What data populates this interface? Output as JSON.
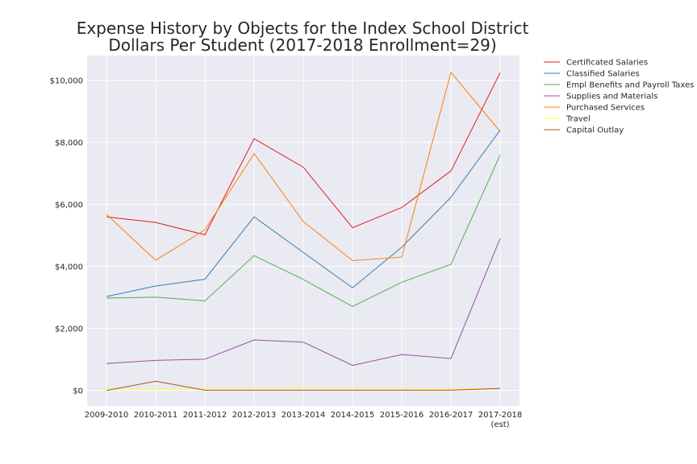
{
  "chart_data": {
    "type": "line",
    "title": "Expense History by Objects for the Index School District",
    "subtitle": "Dollars Per Student (2017-2018 Enrollment=29)",
    "xlabel": "",
    "ylabel": "",
    "categories": [
      "2009-2010",
      "2010-2011",
      "2011-2012",
      "2012-2013",
      "2013-2014",
      "2014-2015",
      "2015-2016",
      "2016-2017",
      "2017-2018\n(est)"
    ],
    "ylim": [
      -500,
      10800
    ],
    "yticks": [
      0,
      2000,
      4000,
      6000,
      8000,
      10000
    ],
    "ytick_labels": [
      "$0",
      "$2,000",
      "$4,000",
      "$6,000",
      "$8,000",
      "$10,000"
    ],
    "grid": true,
    "legend_placement": "outside-top-right",
    "series": [
      {
        "name": "Certificated Salaries",
        "color": "#e41a1c",
        "values": [
          5600,
          5420,
          5020,
          8120,
          7200,
          5250,
          5900,
          7080,
          10250
        ]
      },
      {
        "name": "Classified Salaries",
        "color": "#377eb8",
        "values": [
          3030,
          3370,
          3590,
          5600,
          4450,
          3310,
          4620,
          6230,
          8400
        ]
      },
      {
        "name": "Empl Benefits and Payroll Taxes",
        "color": "#4daf4a",
        "values": [
          2980,
          3010,
          2890,
          4350,
          3580,
          2710,
          3490,
          4070,
          7600
        ]
      },
      {
        "name": "Supplies and Materials",
        "color": "#984ea3",
        "values": [
          870,
          970,
          1010,
          1630,
          1560,
          810,
          1160,
          1030,
          4900
        ]
      },
      {
        "name": "Purchased Services",
        "color": "#ff7f00",
        "values": [
          5680,
          4200,
          5180,
          7640,
          5450,
          4190,
          4300,
          10260,
          8350
        ]
      },
      {
        "name": "Travel",
        "color": "#ffff33",
        "values": [
          60,
          30,
          70,
          70,
          90,
          70,
          60,
          50,
          70
        ]
      },
      {
        "name": "Capital Outlay",
        "color": "#a65628",
        "values": [
          0,
          300,
          10,
          10,
          10,
          10,
          10,
          10,
          70
        ]
      }
    ]
  }
}
